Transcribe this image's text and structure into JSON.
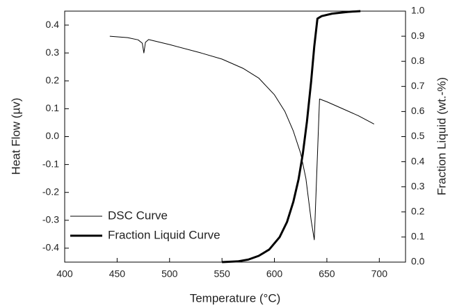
{
  "chart_data": {
    "type": "line",
    "xlabel": "Temperature (°C)",
    "ylabel": "Heat Flow (µv)",
    "y2label": "Fraction Liquid (wt.-%)",
    "xlim": [
      400,
      725
    ],
    "xticks": [
      400,
      450,
      500,
      550,
      600,
      650,
      700
    ],
    "ylim": [
      -0.45,
      0.45
    ],
    "yticks": [
      -0.4,
      -0.3,
      -0.2,
      -0.1,
      {
        "value": 0,
        "label": "0.0"
      },
      0.1,
      0.2,
      0.3,
      0.4
    ],
    "y2lim": [
      0,
      1
    ],
    "y2ticks": [
      {
        "value": 0,
        "label": "0.0"
      },
      0.1,
      0.2,
      0.3,
      0.4,
      0.5,
      0.6,
      0.7,
      0.8,
      0.9,
      {
        "value": 1,
        "label": "1.0"
      }
    ],
    "legend": "lower left",
    "series": [
      {
        "name": "DSC Curve",
        "color": "#000000",
        "width": 1,
        "x": [
          443,
          460,
          470,
          474,
          475.5,
          477,
          480,
          500,
          530,
          550,
          570,
          585,
          600,
          610,
          618,
          625,
          630,
          635,
          638,
          643,
          650,
          665,
          680,
          695
        ],
        "values": [
          0.36,
          0.355,
          0.347,
          0.335,
          0.3,
          0.338,
          0.348,
          0.33,
          0.3,
          0.278,
          0.245,
          0.21,
          0.15,
          0.09,
          0.02,
          -0.06,
          -0.15,
          -0.3,
          -0.37,
          0.135,
          0.125,
          0.1,
          0.075,
          0.045
        ]
      },
      {
        "name": "Fraction Liquid Curve",
        "color": "#000000",
        "width": 3,
        "axis": "y2",
        "x": [
          550,
          565,
          575,
          585,
          595,
          605,
          612,
          618,
          623,
          627,
          631,
          635,
          638,
          641,
          645,
          655,
          670,
          682
        ],
        "values": [
          0,
          0.003,
          0.01,
          0.025,
          0.05,
          0.1,
          0.16,
          0.24,
          0.33,
          0.43,
          0.56,
          0.72,
          0.86,
          0.97,
          0.98,
          0.99,
          0.997,
          1.0
        ]
      }
    ]
  }
}
